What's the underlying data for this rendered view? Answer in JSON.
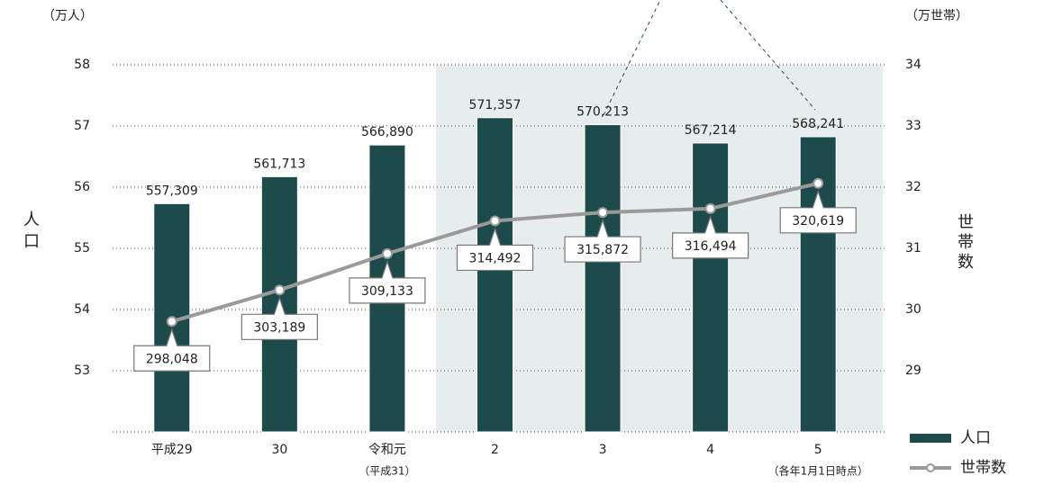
{
  "chart_data": {
    "type": "bar_line",
    "y_unit": "（万人）",
    "y2_unit": "（万世帯）",
    "y_label": "人口",
    "y2_label": "世帯数",
    "categories": [
      "平成29",
      "30",
      "令和元",
      "2",
      "3",
      "4",
      "5"
    ],
    "annotations": [
      "（平成31）",
      "（各年1月1日時点）"
    ],
    "series": [
      {
        "name": "人口",
        "type": "bar",
        "color": "#1d4a4a",
        "axis": "y",
        "values": [
          55.7309,
          56.1713,
          56.689,
          57.1357,
          57.0213,
          56.7214,
          56.8241
        ],
        "value_labels": [
          "557,309",
          "561,713",
          "566,890",
          "571,357",
          "570,213",
          "567,214",
          "568,241"
        ]
      },
      {
        "name": "世帯数",
        "type": "line",
        "color": "#9a9a9a",
        "axis": "y2",
        "values": [
          29.8048,
          30.3189,
          30.9133,
          31.4492,
          31.5872,
          31.6494,
          32.0619
        ],
        "value_labels": [
          "298,048",
          "303,189",
          "309,133",
          "314,492",
          "315,872",
          "316,494",
          "320,619"
        ]
      }
    ],
    "ylim": [
      52,
      58
    ],
    "yticks": [
      53,
      54,
      55,
      56,
      57,
      58
    ],
    "y2lim": [
      28,
      34
    ],
    "y2ticks": [
      29,
      30,
      31,
      32,
      33,
      34
    ],
    "grid": true
  }
}
